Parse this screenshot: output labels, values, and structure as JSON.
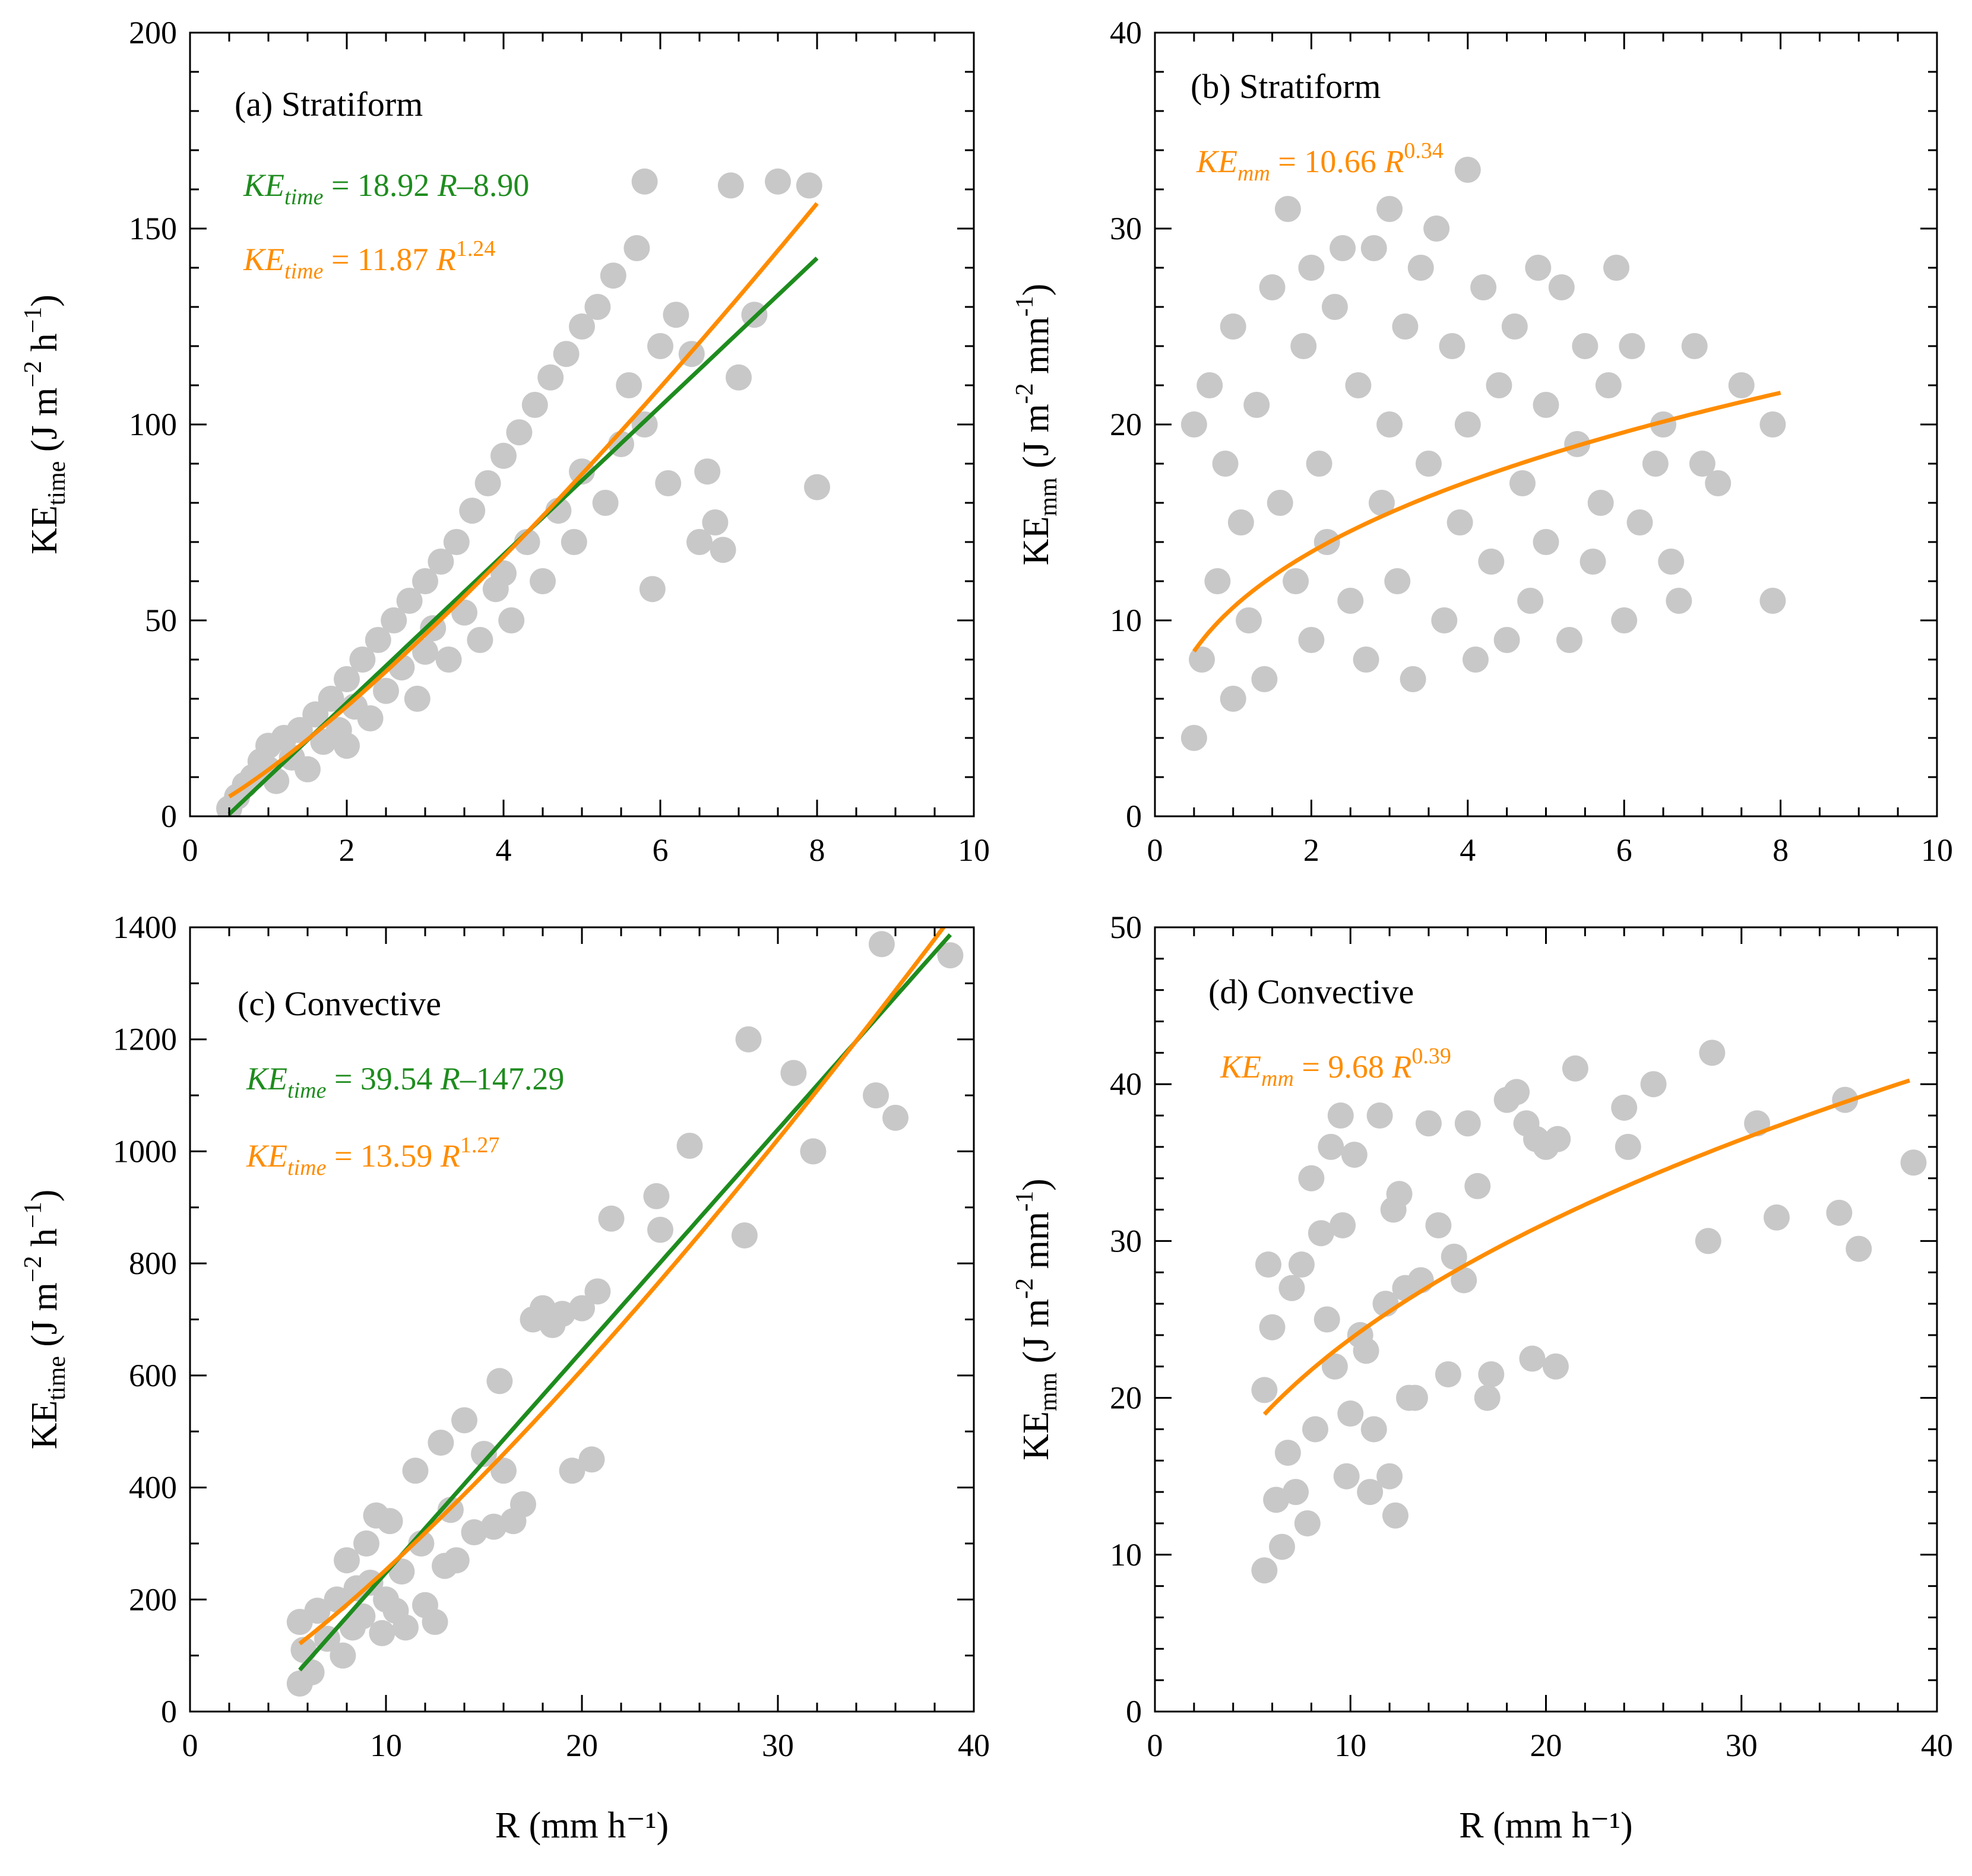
{
  "chart_data": [
    {
      "id": "a",
      "type": "scatter",
      "panel_label": "(a)  Stratiform",
      "xlabel": "",
      "ylabel_main": "KE",
      "ylabel_sub": "time",
      "ylabel_unit": " (J m",
      "ylabel_exp1": "−2",
      "ylabel_mid": " h",
      "ylabel_exp2": "−1",
      "ylabel_end": ")",
      "xlim": [
        0,
        10
      ],
      "ylim": [
        0,
        200
      ],
      "xticks": [
        0,
        2,
        4,
        6,
        8,
        10
      ],
      "yticks": [
        0,
        50,
        100,
        150,
        200
      ],
      "xminor": 0.5,
      "yminor": 10,
      "grid": false,
      "marker_color": "#c8c8c8",
      "points": [
        [
          0.5,
          2
        ],
        [
          0.6,
          5
        ],
        [
          0.7,
          8
        ],
        [
          0.8,
          10
        ],
        [
          0.9,
          14
        ],
        [
          1.0,
          12
        ],
        [
          1.0,
          18
        ],
        [
          1.1,
          9
        ],
        [
          1.2,
          20
        ],
        [
          1.3,
          15
        ],
        [
          1.4,
          22
        ],
        [
          1.5,
          12
        ],
        [
          1.6,
          26
        ],
        [
          1.7,
          19
        ],
        [
          1.8,
          30
        ],
        [
          1.9,
          22
        ],
        [
          2.0,
          35
        ],
        [
          2.0,
          18
        ],
        [
          2.1,
          28
        ],
        [
          2.2,
          40
        ],
        [
          2.3,
          25
        ],
        [
          2.4,
          45
        ],
        [
          2.5,
          32
        ],
        [
          2.6,
          50
        ],
        [
          2.7,
          38
        ],
        [
          2.8,
          55
        ],
        [
          2.9,
          30
        ],
        [
          3.0,
          60
        ],
        [
          3.0,
          42
        ],
        [
          3.1,
          48
        ],
        [
          3.2,
          65
        ],
        [
          3.3,
          40
        ],
        [
          3.4,
          70
        ],
        [
          3.5,
          52
        ],
        [
          3.6,
          78
        ],
        [
          3.7,
          45
        ],
        [
          3.8,
          85
        ],
        [
          3.9,
          58
        ],
        [
          4.0,
          92
        ],
        [
          4.0,
          62
        ],
        [
          4.1,
          50
        ],
        [
          4.2,
          98
        ],
        [
          4.3,
          70
        ],
        [
          4.4,
          105
        ],
        [
          4.5,
          60
        ],
        [
          4.6,
          112
        ],
        [
          4.7,
          78
        ],
        [
          4.8,
          118
        ],
        [
          4.9,
          70
        ],
        [
          5.0,
          125
        ],
        [
          5.0,
          88
        ],
        [
          5.2,
          130
        ],
        [
          5.3,
          80
        ],
        [
          5.4,
          138
        ],
        [
          5.5,
          95
        ],
        [
          5.6,
          110
        ],
        [
          5.7,
          145
        ],
        [
          5.8,
          162
        ],
        [
          5.8,
          100
        ],
        [
          5.9,
          58
        ],
        [
          6.0,
          120
        ],
        [
          6.1,
          85
        ],
        [
          6.2,
          128
        ],
        [
          6.4,
          118
        ],
        [
          6.5,
          70
        ],
        [
          6.6,
          88
        ],
        [
          6.7,
          75
        ],
        [
          6.8,
          68
        ],
        [
          6.9,
          161
        ],
        [
          7.0,
          112
        ],
        [
          7.2,
          128
        ],
        [
          7.5,
          162
        ],
        [
          7.9,
          161
        ],
        [
          8.0,
          84
        ]
      ],
      "series": [
        {
          "name": "KE_time = 18.92 R−8.90",
          "kind": "linear",
          "a": 18.92,
          "b": -8.9,
          "x_range": [
            0.5,
            8.0
          ],
          "color": "#1e8c1e"
        },
        {
          "name": "KE_time = 11.87 R^1.24",
          "kind": "power",
          "a": 11.87,
          "b": 1.24,
          "x_range": [
            0.5,
            8.0
          ],
          "color": "#ff8c00"
        }
      ],
      "annotations": [
        {
          "ke": "KE",
          "sub": "time",
          "rest": " = 18.92 ",
          "r": "R",
          "tail": "–8.90",
          "sup": "",
          "color": "#1e8c1e"
        },
        {
          "ke": "KE",
          "sub": "time",
          "rest": " = 11.87 ",
          "r": "R",
          "tail": "",
          "sup": "1.24",
          "color": "#ff8c00"
        }
      ]
    },
    {
      "id": "b",
      "type": "scatter",
      "panel_label": "(b) Stratiform",
      "xlabel": "",
      "ylabel_main": "KE",
      "ylabel_sub": "mm",
      "ylabel_unit": " (J m",
      "ylabel_exp1": "-2",
      "ylabel_mid": " mm",
      "ylabel_exp2": "-1",
      "ylabel_end": ")",
      "xlim": [
        0,
        10
      ],
      "ylim": [
        0,
        40
      ],
      "xticks": [
        0,
        2,
        4,
        6,
        8,
        10
      ],
      "yticks": [
        0,
        10,
        20,
        30,
        40
      ],
      "xminor": 0.5,
      "yminor": 2,
      "grid": false,
      "marker_color": "#c8c8c8",
      "points": [
        [
          0.5,
          4
        ],
        [
          0.5,
          20
        ],
        [
          0.6,
          8
        ],
        [
          0.7,
          22
        ],
        [
          0.8,
          12
        ],
        [
          0.9,
          18
        ],
        [
          1.0,
          6
        ],
        [
          1.0,
          25
        ],
        [
          1.1,
          15
        ],
        [
          1.2,
          10
        ],
        [
          1.3,
          21
        ],
        [
          1.4,
          7
        ],
        [
          1.5,
          27
        ],
        [
          1.6,
          16
        ],
        [
          1.7,
          31
        ],
        [
          1.8,
          12
        ],
        [
          1.9,
          24
        ],
        [
          2.0,
          9
        ],
        [
          2.0,
          28
        ],
        [
          2.1,
          18
        ],
        [
          2.2,
          14
        ],
        [
          2.3,
          26
        ],
        [
          2.4,
          29
        ],
        [
          2.5,
          11
        ],
        [
          2.6,
          22
        ],
        [
          2.7,
          8
        ],
        [
          2.8,
          29
        ],
        [
          2.9,
          16
        ],
        [
          3.0,
          31
        ],
        [
          3.0,
          20
        ],
        [
          3.1,
          12
        ],
        [
          3.2,
          25
        ],
        [
          3.3,
          7
        ],
        [
          3.4,
          28
        ],
        [
          3.5,
          18
        ],
        [
          3.6,
          30
        ],
        [
          3.7,
          10
        ],
        [
          3.8,
          24
        ],
        [
          3.9,
          15
        ],
        [
          4.0,
          33
        ],
        [
          4.0,
          20
        ],
        [
          4.1,
          8
        ],
        [
          4.2,
          27
        ],
        [
          4.3,
          13
        ],
        [
          4.4,
          22
        ],
        [
          4.5,
          9
        ],
        [
          4.6,
          25
        ],
        [
          4.7,
          17
        ],
        [
          4.8,
          11
        ],
        [
          4.9,
          28
        ],
        [
          5.0,
          14
        ],
        [
          5.0,
          21
        ],
        [
          5.2,
          27
        ],
        [
          5.3,
          9
        ],
        [
          5.4,
          19
        ],
        [
          5.5,
          24
        ],
        [
          5.6,
          13
        ],
        [
          5.7,
          16
        ],
        [
          5.8,
          22
        ],
        [
          5.9,
          28
        ],
        [
          6.0,
          10
        ],
        [
          6.1,
          24
        ],
        [
          6.2,
          15
        ],
        [
          6.4,
          18
        ],
        [
          6.5,
          20
        ],
        [
          6.6,
          13
        ],
        [
          6.7,
          11
        ],
        [
          6.9,
          24
        ],
        [
          7.0,
          18
        ],
        [
          7.2,
          17
        ],
        [
          7.5,
          22
        ],
        [
          7.9,
          20
        ],
        [
          7.9,
          11
        ]
      ],
      "series": [
        {
          "name": "KE_mm = 10.66 R^0.34",
          "kind": "power",
          "a": 10.66,
          "b": 0.34,
          "x_range": [
            0.5,
            8.0
          ],
          "color": "#ff8c00"
        }
      ],
      "annotations": [
        {
          "ke": "KE",
          "sub": "mm",
          "rest": " = 10.66 ",
          "r": "R",
          "tail": "",
          "sup": "0.34",
          "color": "#ff8c00"
        }
      ]
    },
    {
      "id": "c",
      "type": "scatter",
      "panel_label": "(c)  Convective",
      "xlabel": "R (mm h⁻¹)",
      "ylabel_main": "KE",
      "ylabel_sub": "time",
      "ylabel_unit": " (J m",
      "ylabel_exp1": "−2",
      "ylabel_mid": " h",
      "ylabel_exp2": "−1",
      "ylabel_end": ")",
      "xlim": [
        0,
        40
      ],
      "ylim": [
        0,
        1400
      ],
      "xticks": [
        0,
        10,
        20,
        30,
        40
      ],
      "yticks": [
        0,
        200,
        400,
        600,
        800,
        1000,
        1200,
        1400
      ],
      "xminor": 2,
      "yminor": 100,
      "grid": false,
      "marker_color": "#c8c8c8",
      "points": [
        [
          5.6,
          50
        ],
        [
          5.6,
          160
        ],
        [
          5.8,
          110
        ],
        [
          6.2,
          70
        ],
        [
          6.5,
          180
        ],
        [
          7.0,
          130
        ],
        [
          7.5,
          200
        ],
        [
          7.8,
          100
        ],
        [
          8.0,
          270
        ],
        [
          8.3,
          150
        ],
        [
          8.5,
          220
        ],
        [
          8.8,
          170
        ],
        [
          9.0,
          300
        ],
        [
          9.2,
          230
        ],
        [
          9.5,
          350
        ],
        [
          9.8,
          140
        ],
        [
          10.0,
          200
        ],
        [
          10.2,
          340
        ],
        [
          10.5,
          180
        ],
        [
          10.8,
          250
        ],
        [
          11.0,
          150
        ],
        [
          11.5,
          430
        ],
        [
          11.8,
          300
        ],
        [
          12.0,
          190
        ],
        [
          12.5,
          160
        ],
        [
          12.8,
          480
        ],
        [
          13.0,
          260
        ],
        [
          13.3,
          360
        ],
        [
          13.6,
          270
        ],
        [
          14.0,
          520
        ],
        [
          14.5,
          320
        ],
        [
          15.0,
          460
        ],
        [
          15.5,
          330
        ],
        [
          15.8,
          590
        ],
        [
          16.0,
          430
        ],
        [
          16.5,
          340
        ],
        [
          17.0,
          370
        ],
        [
          17.5,
          700
        ],
        [
          18.0,
          720
        ],
        [
          18.5,
          690
        ],
        [
          19.0,
          710
        ],
        [
          19.5,
          430
        ],
        [
          20.0,
          720
        ],
        [
          20.5,
          450
        ],
        [
          20.8,
          750
        ],
        [
          21.5,
          880
        ],
        [
          23.8,
          920
        ],
        [
          24.0,
          860
        ],
        [
          25.5,
          1010
        ],
        [
          28.3,
          850
        ],
        [
          28.5,
          1200
        ],
        [
          30.8,
          1140
        ],
        [
          31.8,
          1000
        ],
        [
          35.0,
          1100
        ],
        [
          35.3,
          1370
        ],
        [
          36.0,
          1060
        ],
        [
          38.8,
          1350
        ]
      ],
      "series": [
        {
          "name": "KE_time = 39.54 R−147.29",
          "kind": "linear",
          "a": 39.54,
          "b": -147.29,
          "x_range": [
            5.6,
            38.8
          ],
          "color": "#1e8c1e"
        },
        {
          "name": "KE_time = 13.59 R^1.27",
          "kind": "power",
          "a": 13.59,
          "b": 1.27,
          "x_range": [
            5.6,
            38.8
          ],
          "color": "#ff8c00"
        }
      ],
      "annotations": [
        {
          "ke": "KE",
          "sub": "time",
          "rest": " = 39.54 ",
          "r": "R",
          "tail": "–147.29",
          "sup": "",
          "color": "#1e8c1e"
        },
        {
          "ke": "KE",
          "sub": "time",
          "rest": " = 13.59 ",
          "r": "R",
          "tail": "",
          "sup": "1.27",
          "color": "#ff8c00"
        }
      ]
    },
    {
      "id": "d",
      "type": "scatter",
      "panel_label": "(d) Convective",
      "xlabel": "R (mm h⁻¹)",
      "ylabel_main": "KE",
      "ylabel_sub": "mm",
      "ylabel_unit": " (J m",
      "ylabel_exp1": "-2",
      "ylabel_mid": " mm",
      "ylabel_exp2": "-1",
      "ylabel_end": ")",
      "xlim": [
        0,
        40
      ],
      "ylim": [
        0,
        50
      ],
      "xticks": [
        0,
        10,
        20,
        30,
        40
      ],
      "yticks": [
        0,
        10,
        20,
        30,
        40,
        50
      ],
      "xminor": 2,
      "yminor": 2,
      "grid": false,
      "marker_color": "#c8c8c8",
      "points": [
        [
          5.6,
          9
        ],
        [
          5.6,
          20.5
        ],
        [
          5.8,
          28.5
        ],
        [
          6.0,
          24.5
        ],
        [
          6.2,
          13.5
        ],
        [
          6.5,
          10.5
        ],
        [
          6.8,
          16.5
        ],
        [
          7.0,
          27
        ],
        [
          7.2,
          14
        ],
        [
          7.5,
          28.5
        ],
        [
          7.8,
          12
        ],
        [
          8.0,
          34
        ],
        [
          8.2,
          18
        ],
        [
          8.5,
          30.5
        ],
        [
          8.8,
          25
        ],
        [
          9.0,
          36
        ],
        [
          9.2,
          22
        ],
        [
          9.5,
          38
        ],
        [
          9.6,
          31
        ],
        [
          9.8,
          15
        ],
        [
          10.0,
          19
        ],
        [
          10.2,
          35.5
        ],
        [
          10.5,
          24
        ],
        [
          10.8,
          23
        ],
        [
          11.0,
          14
        ],
        [
          11.2,
          18
        ],
        [
          11.5,
          38
        ],
        [
          11.8,
          26
        ],
        [
          12.0,
          15
        ],
        [
          12.2,
          32
        ],
        [
          12.3,
          12.5
        ],
        [
          12.5,
          33
        ],
        [
          12.8,
          27
        ],
        [
          13.0,
          20
        ],
        [
          13.3,
          20
        ],
        [
          13.6,
          27.5
        ],
        [
          14.0,
          37.5
        ],
        [
          14.5,
          31
        ],
        [
          15.0,
          21.5
        ],
        [
          15.3,
          29
        ],
        [
          15.8,
          27.5
        ],
        [
          16.0,
          37.5
        ],
        [
          16.5,
          33.5
        ],
        [
          17.0,
          20
        ],
        [
          17.2,
          21.5
        ],
        [
          18.0,
          39
        ],
        [
          18.5,
          39.5
        ],
        [
          19.0,
          37.5
        ],
        [
          19.3,
          22.5
        ],
        [
          19.5,
          36.5
        ],
        [
          20.0,
          36
        ],
        [
          20.5,
          22
        ],
        [
          20.6,
          36.5
        ],
        [
          21.5,
          41
        ],
        [
          24.0,
          38.5
        ],
        [
          24.2,
          36
        ],
        [
          25.5,
          40
        ],
        [
          28.3,
          30
        ],
        [
          28.5,
          42
        ],
        [
          30.8,
          37.5
        ],
        [
          31.8,
          31.5
        ],
        [
          35.0,
          31.8
        ],
        [
          35.3,
          39
        ],
        [
          36.0,
          29.5
        ],
        [
          38.8,
          35
        ]
      ],
      "series": [
        {
          "name": "KE_mm = 9.68 R^0.39",
          "kind": "power",
          "a": 9.68,
          "b": 0.39,
          "x_range": [
            5.6,
            38.6
          ],
          "color": "#ff8c00"
        }
      ],
      "annotations": [
        {
          "ke": "KE",
          "sub": "mm",
          "rest": " = 9.68 ",
          "r": "R",
          "tail": "",
          "sup": "0.39",
          "color": "#ff8c00"
        }
      ]
    }
  ]
}
